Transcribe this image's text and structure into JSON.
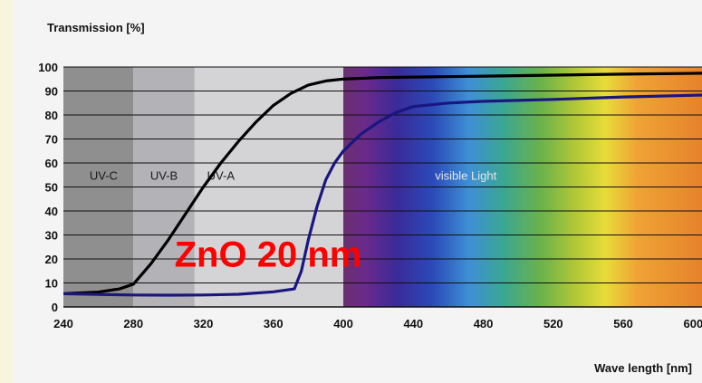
{
  "chart_data": {
    "type": "line",
    "ylabel": "Transmission [%]",
    "xlabel": "Wave length [nm]",
    "xlim": [
      240,
      605
    ],
    "ylim": [
      0,
      100
    ],
    "xticks": [
      "240",
      "280",
      "320",
      "360",
      "400",
      "440",
      "480",
      "520",
      "560",
      "600"
    ],
    "yticks": [
      "0",
      "10",
      "20",
      "30",
      "40",
      "50",
      "60",
      "70",
      "80",
      "90",
      "100"
    ],
    "grid": true,
    "regions": [
      {
        "label": "UV-C",
        "start": 240,
        "end": 280,
        "color": "#8f8f8f"
      },
      {
        "label": "UV-B",
        "start": 280,
        "end": 315,
        "color": "#b3b2b7"
      },
      {
        "label": "UV-A",
        "start": 315,
        "end": 400,
        "color": "#d4d4d6"
      },
      {
        "label": "visible Light",
        "start": 400,
        "end": 605,
        "color": "spectrum"
      }
    ],
    "series": [
      {
        "color": "#000000",
        "points": [
          [
            240,
            5.5
          ],
          [
            260,
            6.2
          ],
          [
            272,
            7.5
          ],
          [
            280,
            9.5
          ],
          [
            290,
            18
          ],
          [
            300,
            28
          ],
          [
            310,
            39
          ],
          [
            320,
            50
          ],
          [
            330,
            60
          ],
          [
            340,
            69
          ],
          [
            350,
            77
          ],
          [
            360,
            84
          ],
          [
            370,
            89
          ],
          [
            380,
            92.5
          ],
          [
            390,
            94.2
          ],
          [
            400,
            95
          ],
          [
            420,
            95.6
          ],
          [
            440,
            95.8
          ],
          [
            480,
            96.2
          ],
          [
            520,
            96.6
          ],
          [
            560,
            97
          ],
          [
            605,
            97.4
          ]
        ]
      },
      {
        "color": "#1a1680",
        "points": [
          [
            240,
            5.5
          ],
          [
            260,
            5.2
          ],
          [
            280,
            5.0
          ],
          [
            300,
            4.9
          ],
          [
            320,
            5.0
          ],
          [
            340,
            5.3
          ],
          [
            360,
            6.3
          ],
          [
            372,
            7.5
          ],
          [
            376,
            15
          ],
          [
            380,
            28
          ],
          [
            385,
            42
          ],
          [
            390,
            53
          ],
          [
            395,
            60
          ],
          [
            400,
            65
          ],
          [
            410,
            72
          ],
          [
            420,
            77
          ],
          [
            430,
            81
          ],
          [
            440,
            83.5
          ],
          [
            460,
            85
          ],
          [
            480,
            85.7
          ],
          [
            520,
            86.5
          ],
          [
            560,
            87.5
          ],
          [
            605,
            88.3
          ]
        ]
      }
    ],
    "annotations": [
      {
        "text": "ZnO 20 nm",
        "x": 357,
        "y": 22,
        "color": "#ff0000"
      }
    ]
  }
}
